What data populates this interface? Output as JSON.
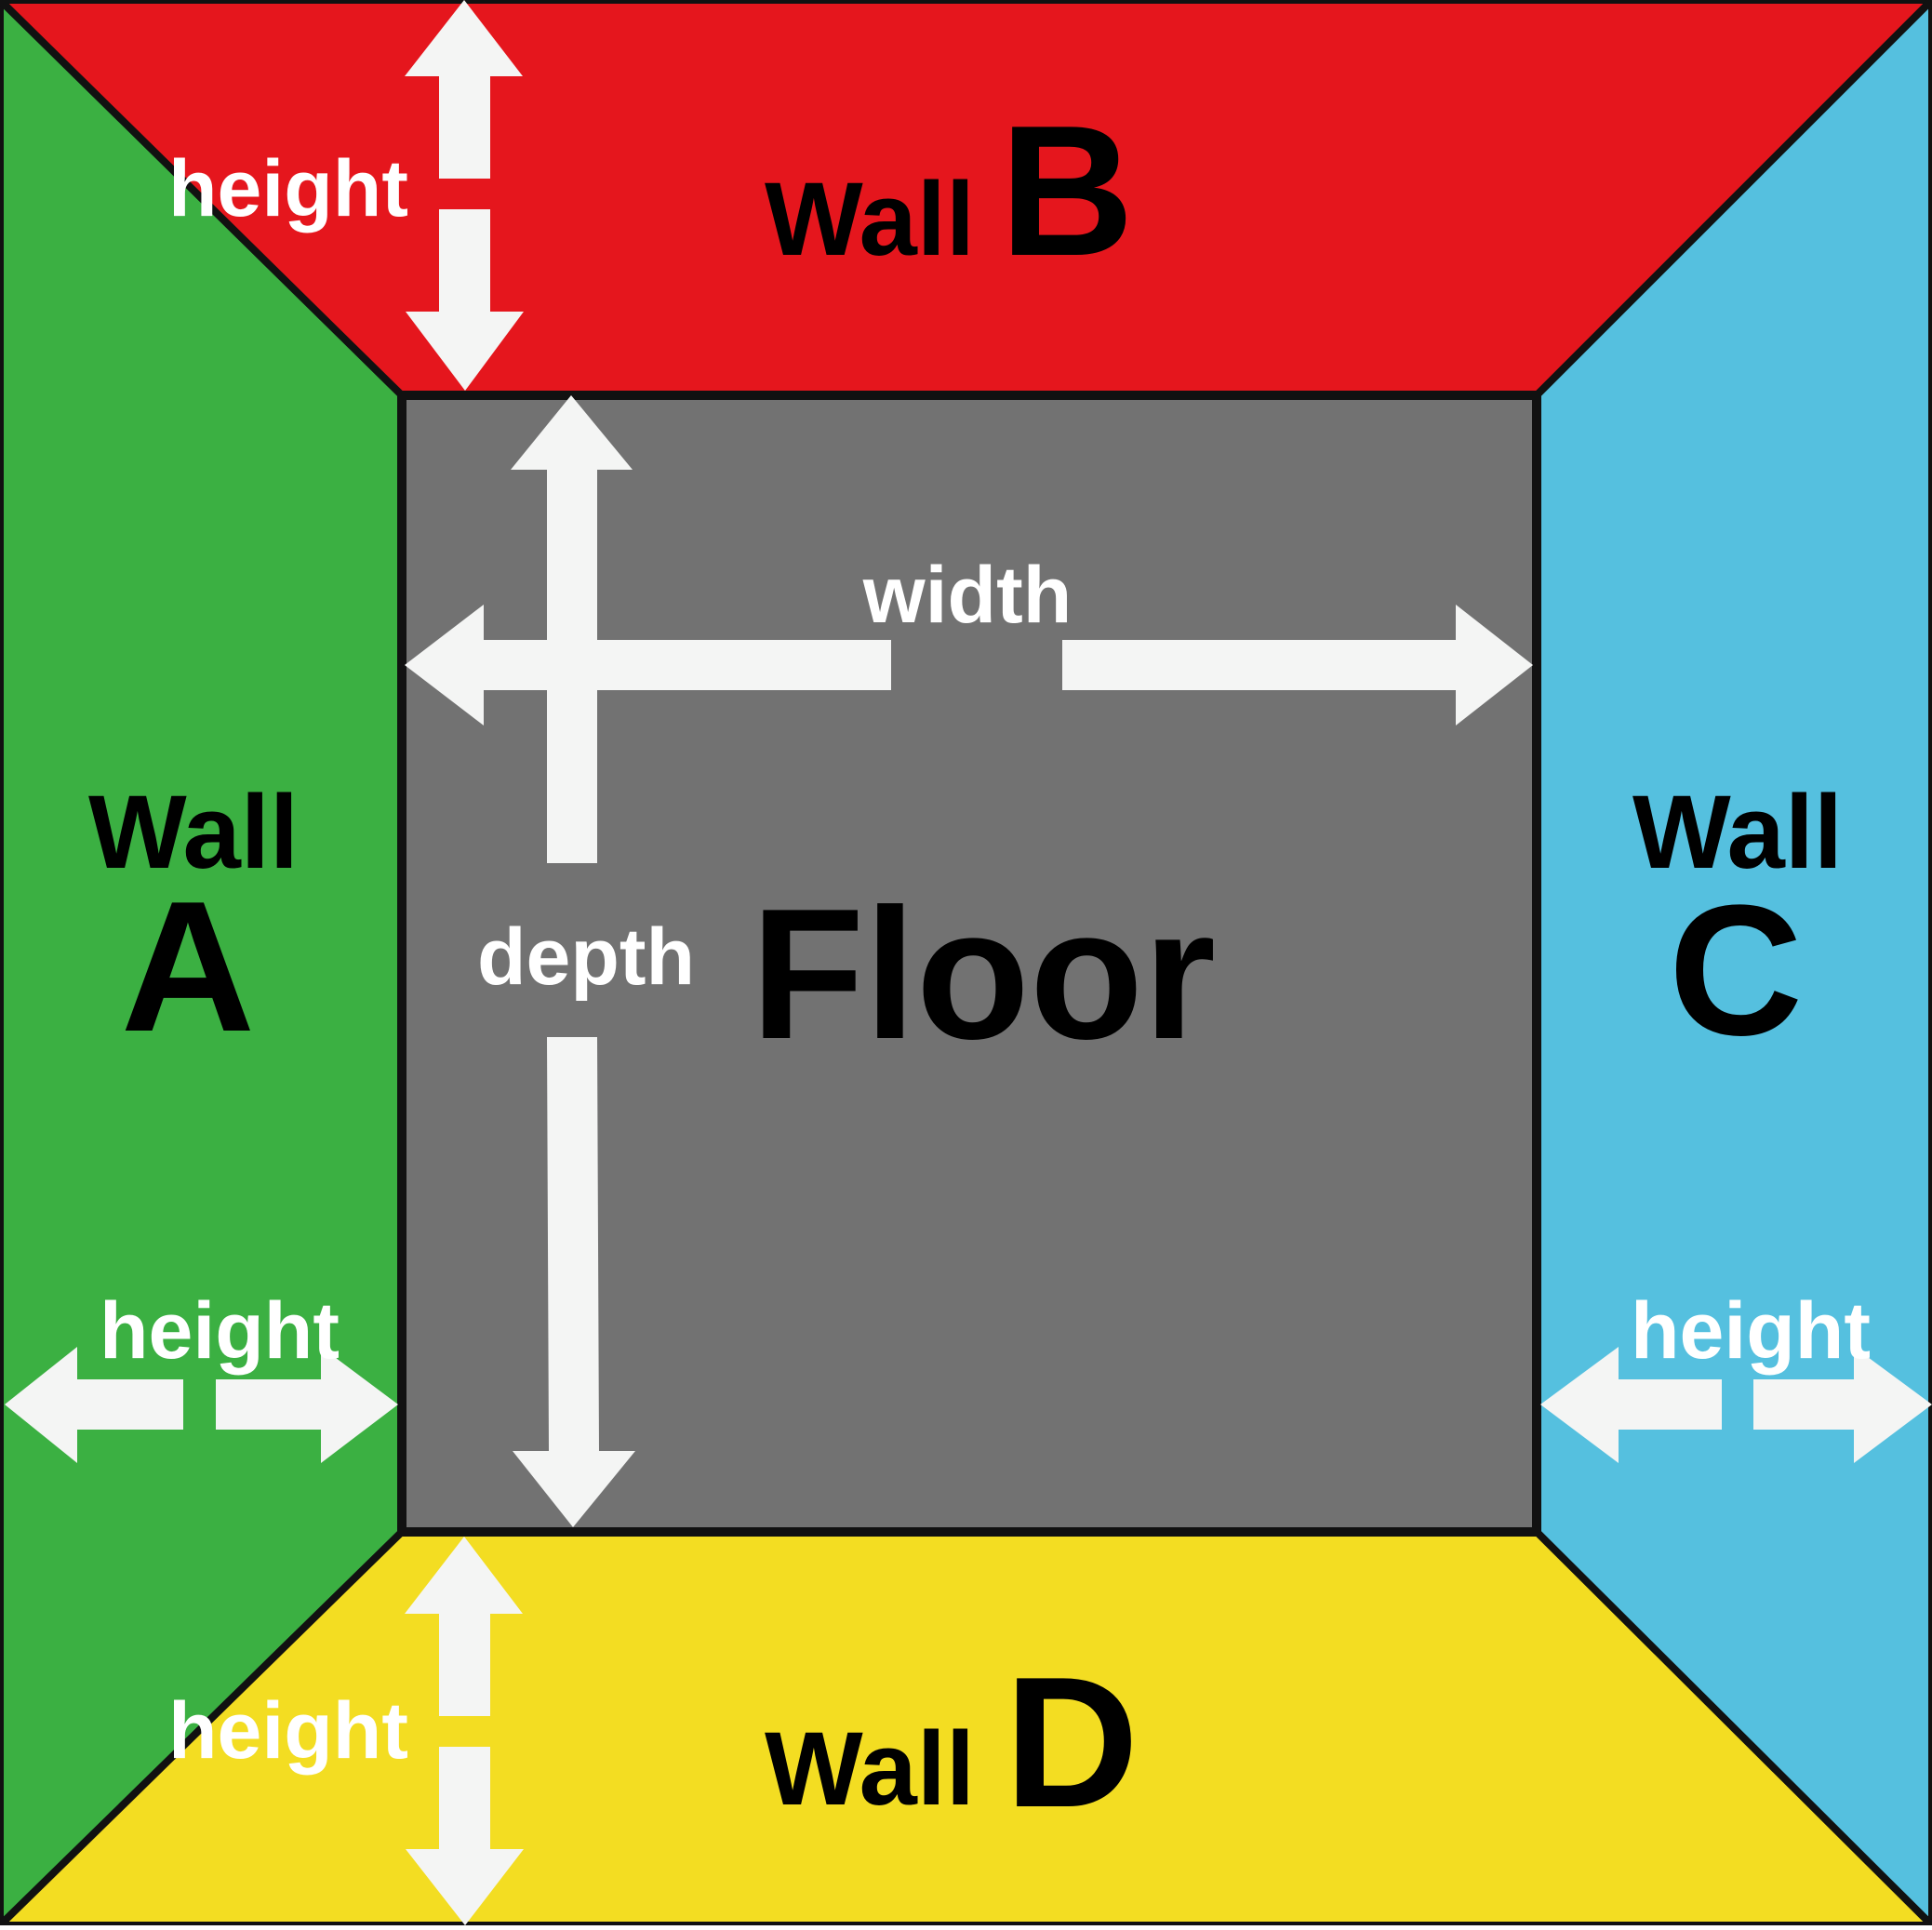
{
  "colors": {
    "wall_a": "#3bb042",
    "wall_b": "#e5161d",
    "wall_c": "#55c0df",
    "wall_d": "#f3dd22",
    "floor": "#727272",
    "outline": "#111111",
    "arrow": "#f4f5f4",
    "label_dark": "#000000",
    "label_light": "#ffffff"
  },
  "labels": {
    "wall_a_word": "Wall",
    "wall_a_letter": "A",
    "wall_b_word": "Wall",
    "wall_b_letter": "B",
    "wall_c_word": "Wall",
    "wall_c_letter": "C",
    "wall_d_word": "Wall",
    "wall_d_letter": "D",
    "floor": "Floor",
    "width": "width",
    "depth": "depth",
    "height_b": "height",
    "height_a": "height",
    "height_c": "height",
    "height_d": "height"
  }
}
